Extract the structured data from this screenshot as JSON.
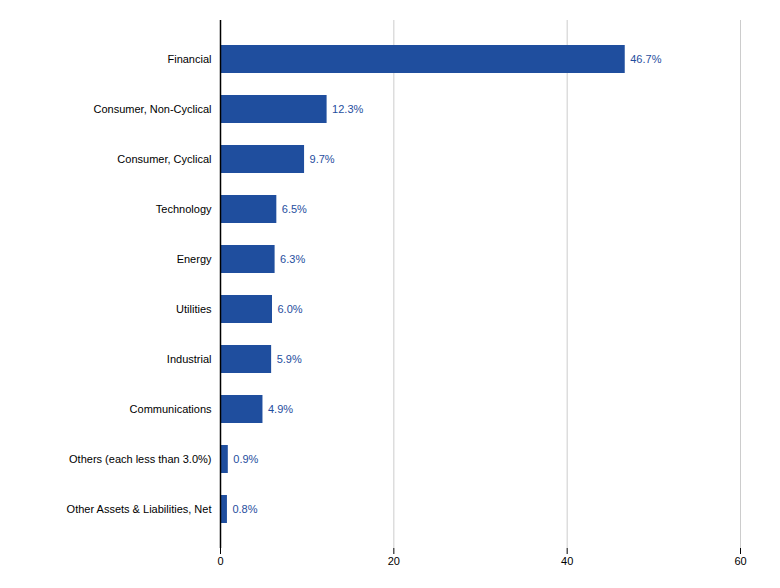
{
  "chart_data": {
    "type": "bar",
    "orientation": "horizontal",
    "categories": [
      "Other Assets & Liabilities, Net",
      "Others (each less than 3.0%)",
      "Communications",
      "Industrial",
      "Utilities",
      "Energy",
      "Technology",
      "Consumer, Cyclical",
      "Consumer, Non-Cyclical",
      "Financial"
    ],
    "values": [
      0.8,
      0.9,
      4.9,
      5.9,
      6.0,
      6.3,
      6.5,
      9.7,
      12.3,
      46.7
    ],
    "value_labels": [
      "0.8%",
      "0.9%",
      "4.9%",
      "5.9%",
      "6.0%",
      "6.3%",
      "6.5%",
      "9.7%",
      "12.3%",
      "46.7%"
    ],
    "data_labels": true,
    "color": "#1F4E9E",
    "xlim": [
      0,
      60
    ],
    "xticks": [
      0,
      20,
      40,
      60
    ],
    "grid": true
  }
}
